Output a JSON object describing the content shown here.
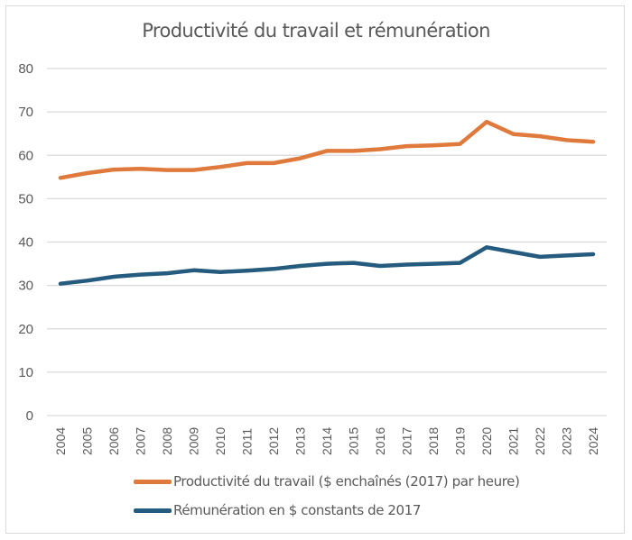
{
  "chart_data": {
    "type": "line",
    "title": "Productivité du travail  et rémunération",
    "xlabel": "",
    "ylabel": "",
    "ylim": [
      0,
      80
    ],
    "yticks": [
      "0",
      "10",
      "20",
      "30",
      "40",
      "50",
      "60",
      "70",
      "80"
    ],
    "grid": true,
    "legend_position": "bottom",
    "x": [
      "2004",
      "2005",
      "2006",
      "2007",
      "2008",
      "2009",
      "2010",
      "2011",
      "2012",
      "2013",
      "2014",
      "2015",
      "2016",
      "2017",
      "2018",
      "2019",
      "2020",
      "2021",
      "2022",
      "2023",
      "2024"
    ],
    "series": [
      {
        "name": "Productivité du travail  ($ enchaînés (2017) par heure)",
        "color": "#E07A3C",
        "values": [
          54.8,
          55.9,
          56.7,
          56.9,
          56.6,
          56.6,
          57.3,
          58.2,
          58.2,
          59.3,
          61.0,
          61.0,
          61.4,
          62.1,
          62.3,
          62.6,
          67.7,
          64.9,
          64.4,
          63.5,
          63.1
        ]
      },
      {
        "name": "Rémunération en $ constants de 2017",
        "color": "#245B7E",
        "values": [
          30.4,
          31.1,
          32.0,
          32.5,
          32.8,
          33.5,
          33.1,
          33.4,
          33.8,
          34.5,
          35.0,
          35.2,
          34.5,
          34.8,
          35.0,
          35.2,
          38.8,
          37.7,
          36.6,
          36.9,
          37.2
        ]
      }
    ]
  }
}
